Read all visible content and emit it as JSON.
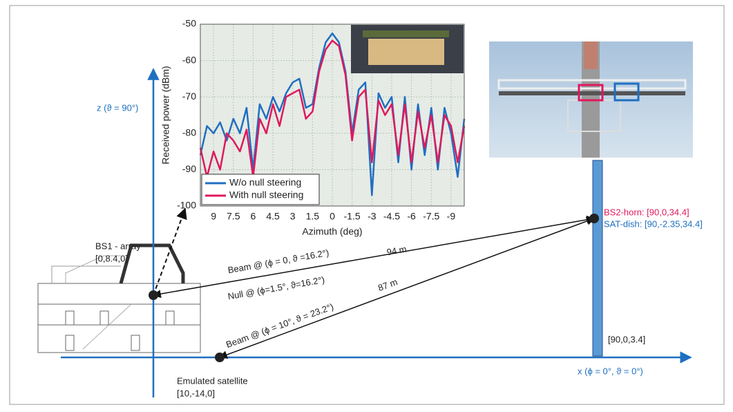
{
  "chart_data": {
    "type": "line",
    "y_label": "Received power (dBm)",
    "x_label": "Azimuth (deg)",
    "x": [
      10,
      9.5,
      9,
      8.5,
      8,
      7.5,
      7,
      6.5,
      6,
      5.5,
      5,
      4.5,
      4,
      3.5,
      3,
      2.5,
      2,
      1.5,
      1,
      0.5,
      0,
      -0.5,
      -1,
      -1.5,
      -2,
      -2.5,
      -3,
      -3.5,
      -4,
      -4.5,
      -5,
      -5.5,
      -6,
      -6.5,
      -7,
      -7.5,
      -8,
      -8.5,
      -9,
      -9.5,
      -10
    ],
    "series": [
      {
        "name": "W/o null steering",
        "color": "#1f6fc0",
        "values": [
          -86,
          -78,
          -80,
          -77,
          -82,
          -76,
          -80,
          -73,
          -90,
          -72,
          -76,
          -70,
          -74,
          -69,
          -66,
          -65,
          -73,
          -72,
          -62,
          -55,
          -52.5,
          -55,
          -63,
          -80,
          -68,
          -66,
          -97,
          -69,
          -73,
          -70,
          -88,
          -70,
          -90,
          -72,
          -86,
          -73,
          -90,
          -73,
          -80,
          -92,
          -76
        ]
      },
      {
        "name": "With null steering",
        "color": "#e0185c",
        "values": [
          -84,
          -92,
          -85,
          -90,
          -80,
          -82,
          -85,
          -79,
          -92,
          -76,
          -80,
          -72,
          -78,
          -70,
          -69,
          -68,
          -76,
          -74,
          -63,
          -57,
          -54.5,
          -56,
          -64,
          -82,
          -70,
          -68,
          -88,
          -71,
          -75,
          -72,
          -86,
          -72,
          -88,
          -74,
          -84,
          -75,
          -88,
          -75,
          -78,
          -88,
          -78
        ]
      }
    ],
    "xlim": [
      10,
      -10
    ],
    "ylim": [
      -100,
      -50
    ],
    "xticks": [
      9,
      7.5,
      6,
      4.5,
      3,
      1.5,
      0,
      -1.5,
      -3,
      -4.5,
      -6,
      -7.5,
      -9
    ],
    "yticks": [
      -50,
      -60,
      -70,
      -80,
      -90,
      -100
    ],
    "grid": true,
    "legend": "lower left"
  },
  "diagram": {
    "z_axis": "z (ϑ = 90°)",
    "x_axis": "x (ϕ = 0°, ϑ = 0°)",
    "bs1_name": "BS1 - array",
    "bs1_pos": "[0,8.4,0]",
    "bs2_horn": "BS2-horn: [90,0,34.4]",
    "sat_dish": "SAT-dish: [90,-2.35,34.4]",
    "tower_base": "[90,0,3.4]",
    "satellite_name": "Emulated satellite",
    "satellite_pos": "[10,-14,0]",
    "beam1": "Beam @ (ϕ = 0, ϑ =16.2°)",
    "beam1_dist": "94 m",
    "null": "Null @ (ϕ=1.5°, ϑ=16.2°)",
    "beam2": "Beam @ (ϕ = 10°, ϑ = 23.2°)",
    "beam2_dist": "87 m"
  }
}
